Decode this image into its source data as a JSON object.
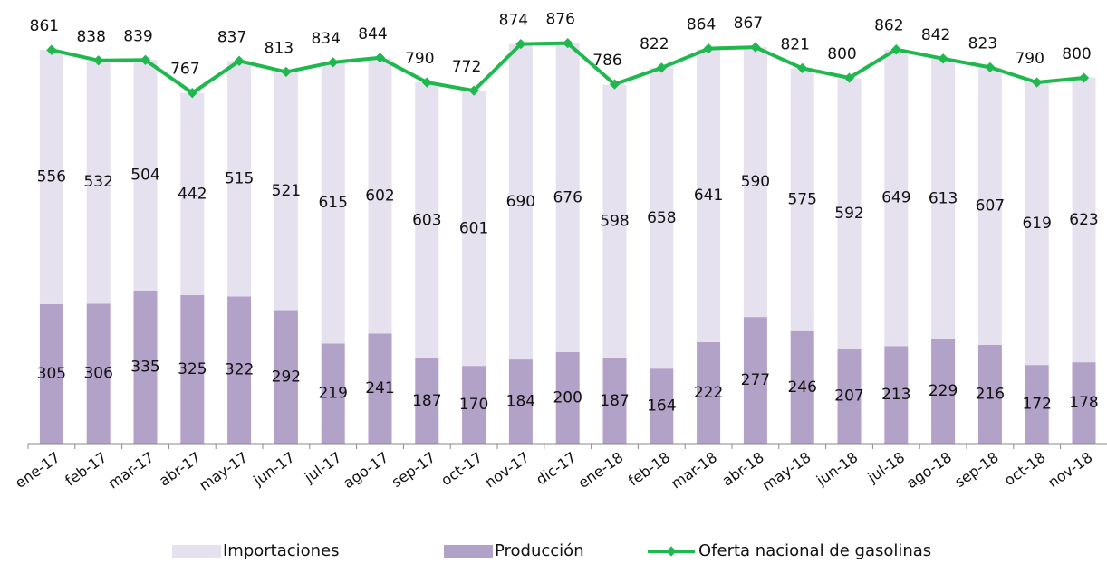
{
  "chart_data": {
    "type": "bar",
    "stacked": true,
    "categories": [
      "ene-17",
      "feb-17",
      "mar-17",
      "abr-17",
      "may-17",
      "jun-17",
      "jul-17",
      "ago-17",
      "sep-17",
      "oct-17",
      "nov-17",
      "dic-17",
      "ene-18",
      "feb-18",
      "mar-18",
      "abr-18",
      "may-18",
      "jun-18",
      "jul-18",
      "ago-18",
      "sep-18",
      "oct-18",
      "nov-18"
    ],
    "series": [
      {
        "name": "Producción",
        "color": "#b3a2c8",
        "values": [
          305,
          306,
          335,
          325,
          322,
          292,
          219,
          241,
          187,
          170,
          184,
          200,
          187,
          164,
          222,
          277,
          246,
          207,
          213,
          229,
          216,
          172,
          178
        ]
      },
      {
        "name": "Importaciones",
        "color": "#e6e1ee",
        "values": [
          556,
          532,
          504,
          442,
          515,
          521,
          615,
          602,
          603,
          601,
          690,
          676,
          598,
          658,
          641,
          590,
          575,
          592,
          649,
          613,
          607,
          619,
          623
        ]
      },
      {
        "name": "Oferta nacional de gasolinas",
        "type": "line",
        "color": "#1fb84f",
        "values": [
          861,
          838,
          839,
          767,
          837,
          813,
          834,
          844,
          790,
          772,
          874,
          876,
          786,
          822,
          864,
          867,
          821,
          800,
          862,
          842,
          823,
          790,
          800
        ]
      }
    ]
  }
}
